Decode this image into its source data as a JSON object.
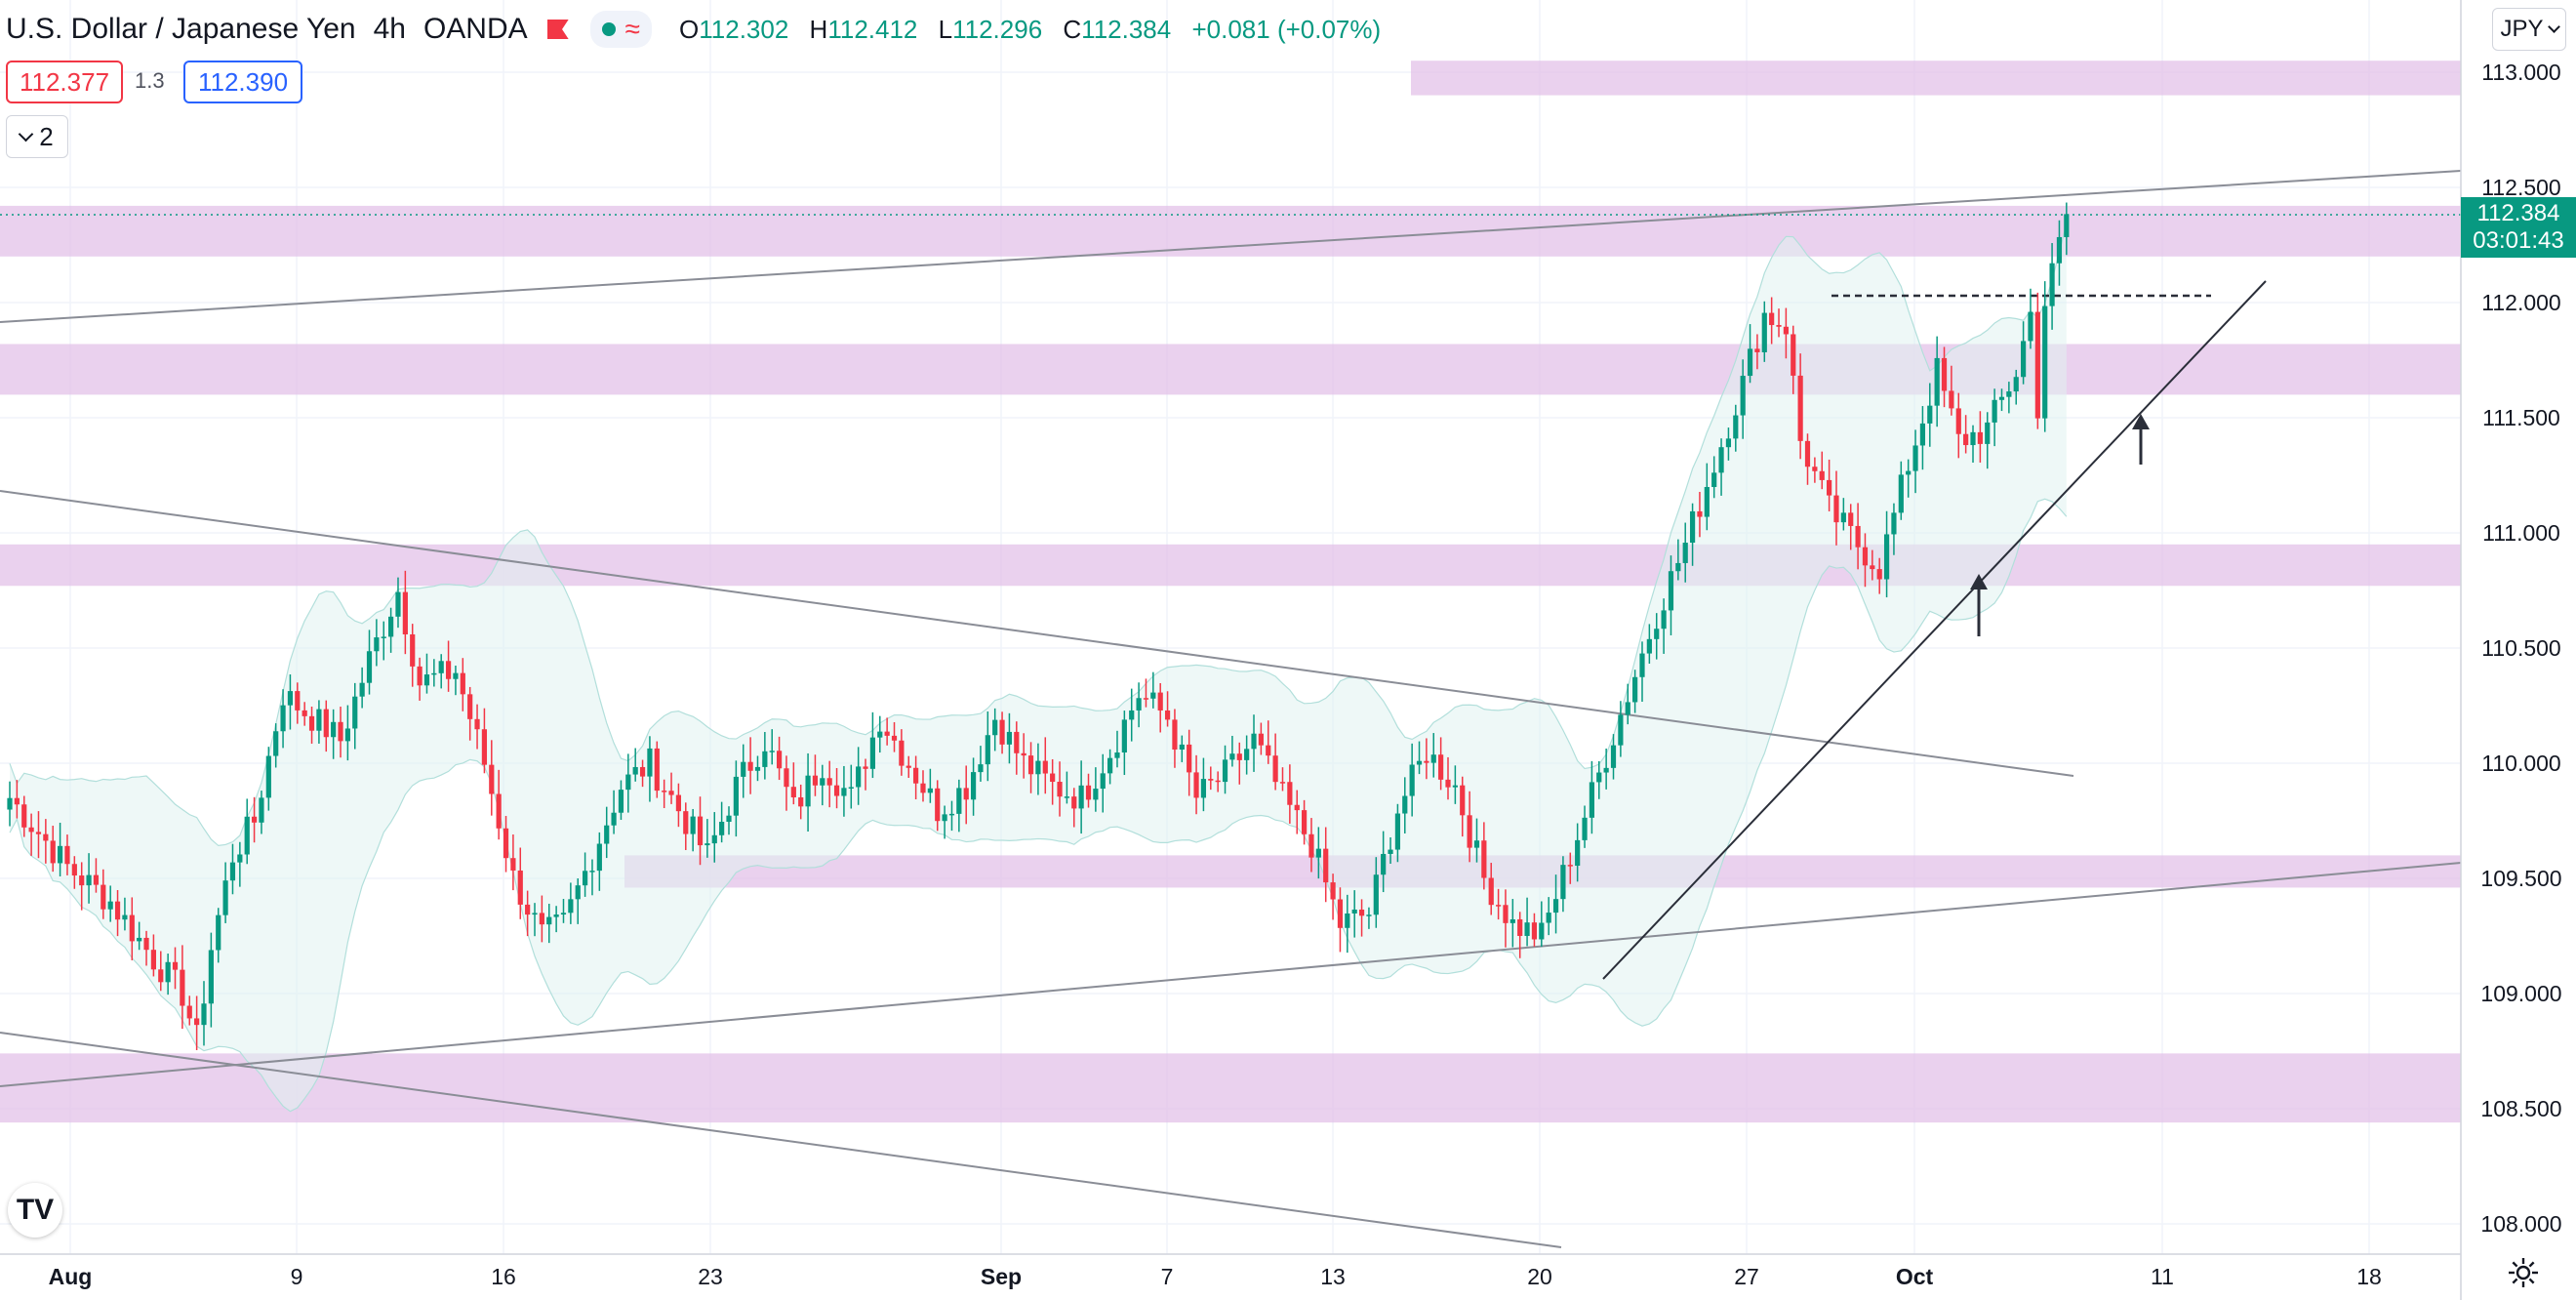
{
  "header": {
    "symbol": "U.S. Dollar / Japanese Yen",
    "interval": "4h",
    "broker": "OANDA",
    "ohlc": {
      "o_label": "O",
      "o": "112.302",
      "h_label": "H",
      "h": "112.412",
      "l_label": "L",
      "l": "112.296",
      "c_label": "C",
      "c": "112.384",
      "change": "+0.081 (+0.07%)"
    }
  },
  "trade": {
    "sell": "112.377",
    "spread": "1.3",
    "buy": "112.390"
  },
  "indicators_count": "2",
  "currency": "JPY",
  "last_price": {
    "value": "112.384",
    "countdown": "03:01:43"
  },
  "logo": "TV",
  "colors": {
    "up": "#089981",
    "down": "#f23645",
    "zone": "#e1bee7",
    "band": "#e0f2f1"
  },
  "chart_data": {
    "type": "candlestick",
    "x_ticks": [
      "Aug",
      "9",
      "16",
      "23",
      "Sep",
      "7",
      "13",
      "20",
      "27",
      "Oct",
      "11",
      "18"
    ],
    "y_ticks": [
      "113.000",
      "112.500",
      "112.000",
      "111.500",
      "111.000",
      "110.500",
      "110.000",
      "109.500",
      "109.000",
      "108.500",
      "108.000"
    ],
    "ylim": [
      107.9,
      113.3
    ],
    "grid": true,
    "ohlc_keypoints": [
      [
        0,
        109.85
      ],
      [
        8,
        109.55
      ],
      [
        14,
        109.4
      ],
      [
        20,
        109.15
      ],
      [
        24,
        109.0
      ],
      [
        26,
        108.8
      ],
      [
        28,
        109.2
      ],
      [
        31,
        109.6
      ],
      [
        34,
        109.75
      ],
      [
        38,
        110.3
      ],
      [
        42,
        110.2
      ],
      [
        46,
        110.1
      ],
      [
        50,
        110.45
      ],
      [
        54,
        110.75
      ],
      [
        57,
        110.35
      ],
      [
        62,
        110.4
      ],
      [
        66,
        110.0
      ],
      [
        70,
        109.5
      ],
      [
        74,
        109.25
      ],
      [
        77,
        109.3
      ],
      [
        81,
        109.6
      ],
      [
        85,
        109.9
      ],
      [
        89,
        110.0
      ],
      [
        93,
        109.8
      ],
      [
        97,
        109.6
      ],
      [
        101,
        109.9
      ],
      [
        105,
        110.1
      ],
      [
        109,
        109.8
      ],
      [
        113,
        110.0
      ],
      [
        117,
        109.85
      ],
      [
        121,
        110.2
      ],
      [
        125,
        110.0
      ],
      [
        129,
        109.8
      ],
      [
        133,
        109.9
      ],
      [
        137,
        110.2
      ],
      [
        141,
        110.0
      ],
      [
        145,
        109.9
      ],
      [
        149,
        109.85
      ],
      [
        153,
        110.05
      ],
      [
        157,
        110.3
      ],
      [
        161,
        110.2
      ],
      [
        165,
        109.85
      ],
      [
        169,
        109.95
      ],
      [
        173,
        110.1
      ],
      [
        177,
        109.85
      ],
      [
        181,
        109.65
      ],
      [
        185,
        109.3
      ],
      [
        189,
        109.35
      ],
      [
        193,
        109.8
      ],
      [
        197,
        110.05
      ],
      [
        201,
        109.9
      ],
      [
        205,
        109.5
      ],
      [
        209,
        109.3
      ],
      [
        213,
        109.25
      ],
      [
        217,
        109.6
      ],
      [
        221,
        109.95
      ],
      [
        225,
        110.3
      ],
      [
        229,
        110.65
      ],
      [
        233,
        110.95
      ],
      [
        237,
        111.3
      ],
      [
        241,
        111.65
      ],
      [
        244,
        111.95
      ],
      [
        247,
        111.9
      ],
      [
        249,
        111.4
      ],
      [
        253,
        111.1
      ],
      [
        257,
        110.95
      ],
      [
        260,
        110.85
      ],
      [
        264,
        111.3
      ],
      [
        268,
        111.7
      ],
      [
        271,
        111.4
      ],
      [
        275,
        111.45
      ],
      [
        279,
        111.7
      ],
      [
        281,
        111.95
      ],
      [
        282,
        111.55
      ],
      [
        283,
        112.0
      ],
      [
        285,
        112.25
      ],
      [
        286,
        112.384
      ]
    ],
    "last": 112.384,
    "zones": [
      [
        112.9,
        113.05
      ],
      [
        112.2,
        112.42
      ],
      [
        111.6,
        111.82
      ],
      [
        110.77,
        110.95
      ],
      [
        109.46,
        109.6
      ],
      [
        108.44,
        108.74
      ]
    ],
    "annotations": {
      "resistance_dashed": 112.03
    }
  }
}
